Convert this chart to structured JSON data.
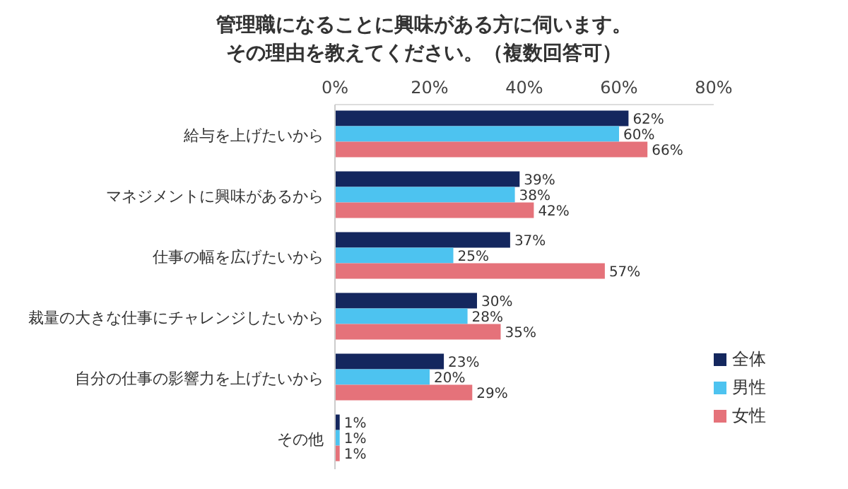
{
  "chart_data": {
    "type": "bar",
    "orientation": "horizontal",
    "title": "管理職になることに興味がある方に伺います。",
    "subtitle": "その理由を教えてください。（複数回答可）",
    "categories": [
      "給与を上げたいから",
      "マネジメントに興味があるから",
      "仕事の幅を広げたいから",
      "裁量の大きな仕事にチャレンジしたいから",
      "自分の仕事の影響力を上げたいから",
      "その他"
    ],
    "series": [
      {
        "name": "全体",
        "color": "#14275e",
        "values": [
          62,
          39,
          37,
          30,
          23,
          1
        ],
        "value_labels": [
          "62%",
          "39%",
          "37%",
          "30%",
          "23%",
          "1%"
        ]
      },
      {
        "name": "男性",
        "color": "#4dc3f0",
        "values": [
          60,
          38,
          25,
          28,
          20,
          1
        ],
        "value_labels": [
          "60%",
          "38%",
          "25%",
          "28%",
          "20%",
          "1%"
        ]
      },
      {
        "name": "女性",
        "color": "#e5727a",
        "values": [
          66,
          42,
          57,
          35,
          29,
          1
        ],
        "value_labels": [
          "66%",
          "42%",
          "57%",
          "35%",
          "29%",
          "1%"
        ]
      }
    ],
    "xlim": [
      0,
      80
    ],
    "xticks": [
      {
        "value": 0,
        "label": "0%"
      },
      {
        "value": 20,
        "label": "20%"
      },
      {
        "value": 40,
        "label": "40%"
      },
      {
        "value": 60,
        "label": "60%"
      },
      {
        "value": 80,
        "label": "80%"
      }
    ],
    "grid": false,
    "legend": "bottom right"
  }
}
